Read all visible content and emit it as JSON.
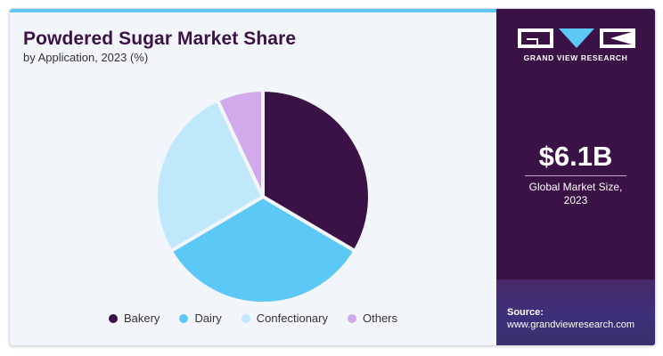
{
  "header": {
    "title": "Powdered Sugar Market Share",
    "subtitle": "by Application, 2023 (%)"
  },
  "sidebar": {
    "brand": "GRAND VIEW RESEARCH",
    "market_size": "$6.1B",
    "market_size_label_line1": "Global Market Size,",
    "market_size_label_line2": "2023",
    "source_label": "Source:",
    "source_url": "www.grandviewresearch.com"
  },
  "colors": {
    "bakery": "#3a1245",
    "dairy": "#5bc8f5",
    "confectionary": "#bfe8fa",
    "others": "#d2a9ea",
    "accent_bar": "#5fc9f4",
    "panel": "#3a1245"
  },
  "chart_data": {
    "type": "pie",
    "title": "Powdered Sugar Market Share",
    "subtitle": "by Application, 2023 (%)",
    "categories": [
      "Bakery",
      "Dairy",
      "Confectionary",
      "Others"
    ],
    "values": [
      33.5,
      33.0,
      26.5,
      7.0
    ],
    "legend_position": "bottom"
  }
}
